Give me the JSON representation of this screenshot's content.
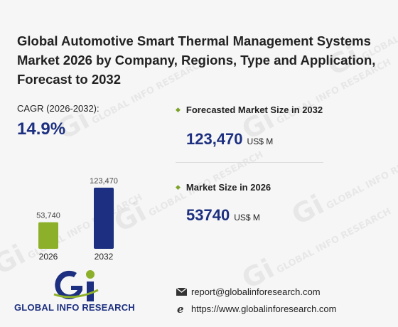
{
  "title": "Global Automotive Smart Thermal Management Systems Market 2026 by Company, Regions, Type and Application, Forecast to 2032",
  "cagr": {
    "label": "CAGR (2026-2032):",
    "value": "14.9%"
  },
  "stats": [
    {
      "label": "Forecasted Market Size in 2032",
      "value": "123,470",
      "unit": "US$ M"
    },
    {
      "label": "Market Size in 2026",
      "value": "53740",
      "unit": "US$ M"
    }
  ],
  "chart_data": {
    "type": "bar",
    "categories": [
      "2026",
      "2032"
    ],
    "values": [
      53740,
      123470
    ],
    "value_labels": [
      "53,740",
      "123,470"
    ],
    "colors": [
      "#8db02a",
      "#1c2f80"
    ]
  },
  "logo": {
    "text": "GLOBAL INFO RESEARCH",
    "icon": "gi-logo"
  },
  "contact": {
    "email": "report@globalinforesearch.com",
    "website": "https://www.globalinforesearch.com",
    "email_icon": "envelope-icon",
    "web_icon": "browser-e-icon"
  },
  "colors": {
    "accent": "#1c2f80",
    "green": "#8db02a"
  }
}
